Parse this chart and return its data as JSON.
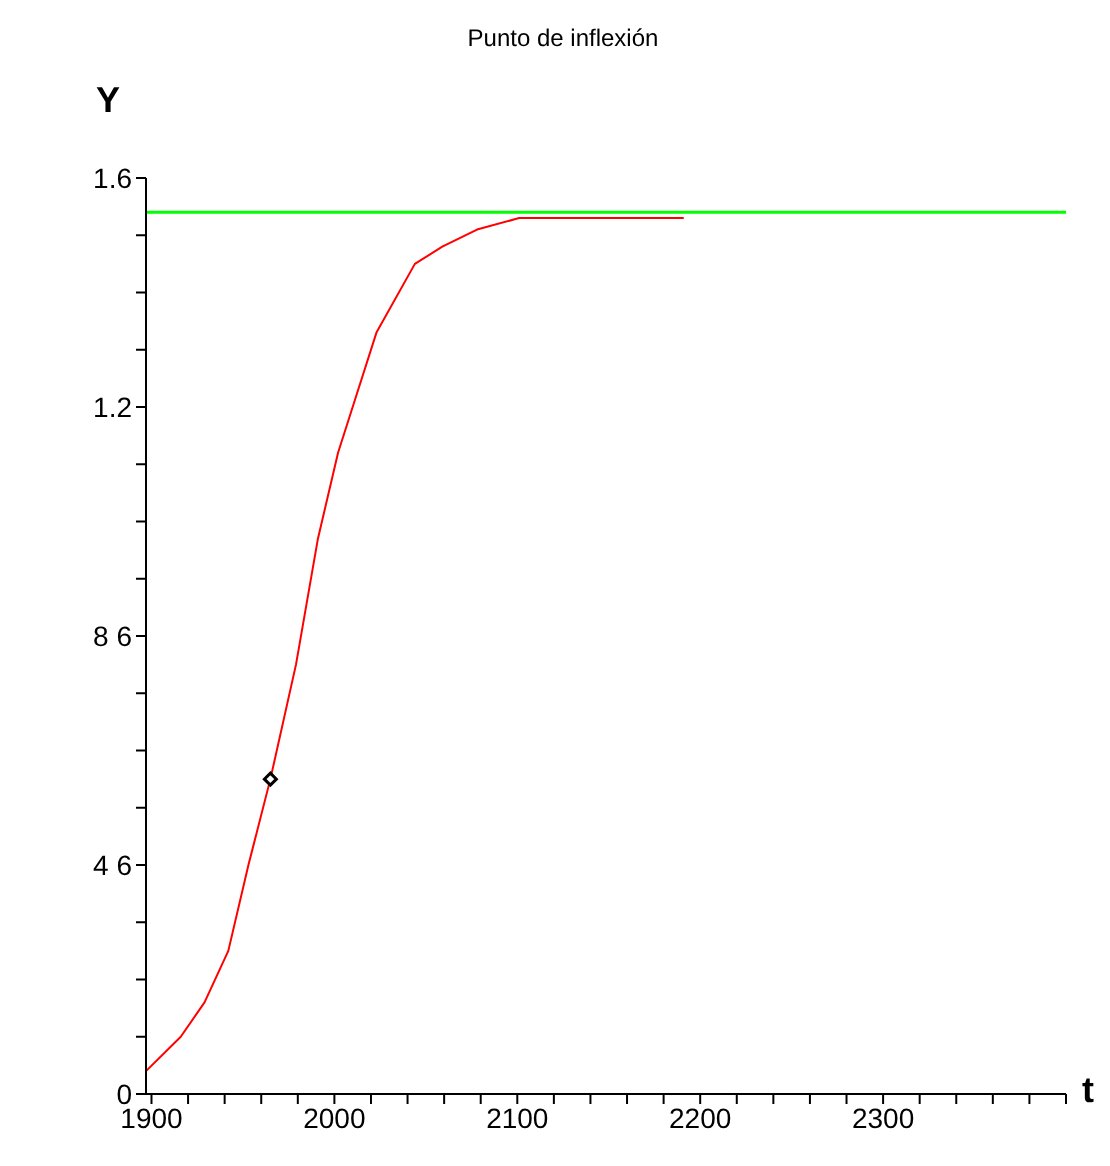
{
  "chart_data": {
    "type": "line",
    "title": "Punto de inflexión",
    "xlabel": "t",
    "ylabel": "Y",
    "xlim": [
      1897,
      2400
    ],
    "ylim": [
      0,
      1.6
    ],
    "xticks": [
      1900,
      {
        "value": 1920,
        "label": null
      },
      {
        "value": 1940,
        "label": null
      },
      {
        "value": 1960,
        "label": null
      },
      {
        "value": 1980,
        "label": null
      },
      2000,
      {
        "value": 2020,
        "label": null
      },
      {
        "value": 2040,
        "label": null
      },
      {
        "value": 2060,
        "label": null
      },
      {
        "value": 2080,
        "label": null
      },
      2100,
      {
        "value": 2120,
        "label": null
      },
      {
        "value": 2140,
        "label": null
      },
      {
        "value": 2160,
        "label": null
      },
      {
        "value": 2180,
        "label": null
      },
      2200,
      {
        "value": 2220,
        "label": null
      },
      {
        "value": 2240,
        "label": null
      },
      {
        "value": 2260,
        "label": null
      },
      {
        "value": 2280,
        "label": null
      },
      2300,
      {
        "value": 2320,
        "label": null
      },
      {
        "value": 2340,
        "label": null
      },
      {
        "value": 2360,
        "label": null
      },
      {
        "value": 2380,
        "label": null
      },
      {
        "value": 2400,
        "label": null
      }
    ],
    "yticks": [
      0,
      {
        "value": 0.1,
        "label": null
      },
      {
        "value": 0.2,
        "label": null
      },
      {
        "value": 0.3,
        "label": null
      },
      {
        "value": 0.4,
        "label": "4 6"
      },
      {
        "value": 0.5,
        "label": null
      },
      {
        "value": 0.6,
        "label": null
      },
      {
        "value": 0.7,
        "label": null
      },
      {
        "value": 0.8,
        "label": "8 6"
      },
      {
        "value": 0.9,
        "label": null
      },
      {
        "value": 1.0,
        "label": null
      },
      {
        "value": 1.1,
        "label": null
      },
      1.2,
      {
        "value": 1.3,
        "label": null
      },
      {
        "value": 1.4,
        "label": null
      },
      {
        "value": 1.5,
        "label": null
      },
      1.6
    ],
    "series": [
      {
        "color": "#ff0000",
        "marker": "none",
        "x": [
          1897,
          1916,
          1929,
          1942,
          1953,
          1965,
          1979,
          1991,
          2002,
          2012,
          2023,
          2044,
          2059,
          2078,
          2101,
          2191
        ],
        "values": [
          0.04,
          0.1,
          0.16,
          0.25,
          0.4,
          0.55,
          0.75,
          0.97,
          1.12,
          1.22,
          1.33,
          1.45,
          1.48,
          1.51,
          1.53,
          1.53
        ]
      },
      {
        "type": "scatter",
        "color": "#000000",
        "marker": "diamond",
        "x": [
          1965
        ],
        "values": [
          0.55
        ]
      }
    ],
    "ref_lines": [
      {
        "axis": "y",
        "value": 1.54,
        "color": "#00ff00"
      }
    ]
  }
}
